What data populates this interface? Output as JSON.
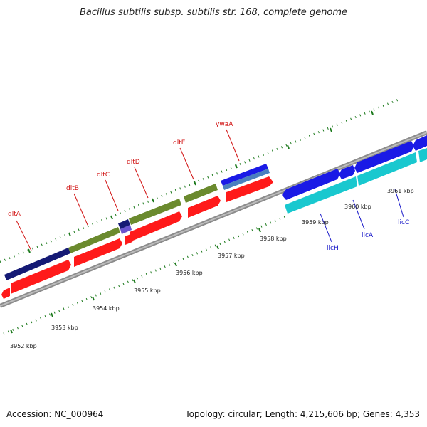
{
  "title": "Bacillus subtilis subsp. subtilis str. 168, complete genome",
  "footer": {
    "accession": "Accession: NC_000964",
    "stats": "Topology: circular; Length: 4,215,606 bp; Genes: 4,353"
  },
  "colors": {
    "backbone": "#8c8c8c",
    "tick": "#1d7a1d",
    "forward_label": "#d11111",
    "reverse_label": "#1515c8",
    "red_feature": "#ff1a1a",
    "navy_feature": "#151a75",
    "olive_feature": "#6b8a2e",
    "blue_feature": "#1a1ae6",
    "cyan_feature": "#19c8cf",
    "steel_feature": "#4a7fbf",
    "purple_feature": "#6a55d0"
  },
  "ruler_labels": [
    "3952 kbp",
    "3953 kbp",
    "3954 kbp",
    "3955 kbp",
    "3956 kbp",
    "3957 kbp",
    "3958 kbp",
    "3959 kbp",
    "3960 kbp",
    "3961 kbp"
  ],
  "forward_genes": [
    "dltA",
    "dltB",
    "dltC",
    "dltD",
    "dltE",
    "ywaA"
  ],
  "reverse_genes": [
    "licH",
    "licA",
    "licC"
  ]
}
